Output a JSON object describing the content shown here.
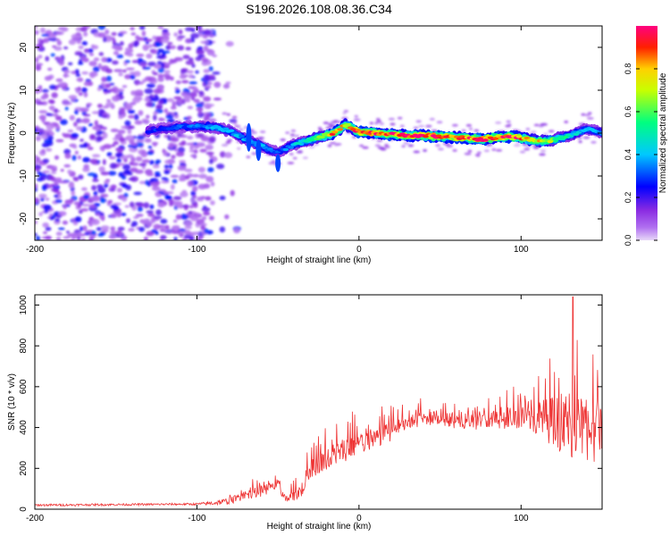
{
  "figure_title": "S196.2026.108.08.36.C34",
  "chart_data": [
    {
      "type": "heatmap",
      "xlabel": "Height of straight line (km)",
      "ylabel": "Frequency (Hz)",
      "xlim": [
        -200,
        150
      ],
      "ylim": [
        -25,
        25
      ],
      "xticks": [
        -200,
        -100,
        0,
        100
      ],
      "yticks": [
        -20,
        -10,
        0,
        10,
        20
      ],
      "colorbar": {
        "label": "Normalized spectral amplitude",
        "range": [
          0,
          1
        ],
        "ticks": [
          "0.0",
          "0.2",
          "0.4",
          "0.6",
          "0.8"
        ],
        "colors": [
          "#e8d8f8",
          "#8a2be2",
          "#0000ff",
          "#00c8ff",
          "#00ff80",
          "#c8ff00",
          "#ffd000",
          "#ff2000",
          "#ff0080"
        ]
      },
      "ridge": {
        "x": [
          -130,
          -110,
          -90,
          -80,
          -70,
          -60,
          -55,
          -50,
          -45,
          -35,
          -25,
          -15,
          -8,
          0,
          10,
          20,
          30,
          45,
          60,
          75,
          85,
          95,
          105,
          115,
          125,
          135,
          140,
          150
        ],
        "freq": [
          0.5,
          1.5,
          1.5,
          0.5,
          -1.5,
          -3,
          -4,
          -4.5,
          -3.5,
          -2,
          -1,
          0,
          2,
          0.3,
          0,
          -0.3,
          -0.5,
          -0.7,
          -1,
          -1.5,
          -1,
          -0.8,
          -1.5,
          -2,
          -1,
          0,
          1,
          0
        ],
        "amplitude": [
          0.25,
          0.3,
          0.4,
          0.35,
          0.4,
          0.4,
          0.35,
          0.3,
          0.35,
          0.45,
          0.6,
          0.85,
          0.7,
          0.95,
          0.9,
          0.9,
          0.9,
          0.95,
          0.85,
          0.95,
          0.9,
          0.9,
          0.8,
          0.7,
          0.55,
          0.4,
          0.4,
          0.35
        ]
      },
      "noise_region_x": [
        -200,
        -90
      ],
      "noise_freq_range": [
        -25,
        25
      ],
      "noise_amplitude": [
        0.05,
        0.3
      ]
    },
    {
      "type": "line",
      "xlabel": "Height of straight line (km)",
      "ylabel": "SNR (10 * v/v)",
      "xlim": [
        -200,
        150
      ],
      "ylim": [
        0,
        1050
      ],
      "xticks": [
        -200,
        -100,
        0,
        100
      ],
      "yticks": [
        0,
        200,
        400,
        600,
        800,
        1000
      ],
      "color": "#ee3333",
      "envelope": {
        "x": [
          -200,
          -100,
          -90,
          -80,
          -70,
          -60,
          -50,
          -45,
          -35,
          -30,
          -20,
          -10,
          0,
          10,
          20,
          30,
          40,
          50,
          60,
          70,
          80,
          90,
          100,
          110,
          120,
          130,
          140,
          150
        ],
        "base": [
          20,
          25,
          30,
          40,
          70,
          90,
          120,
          40,
          100,
          200,
          250,
          290,
          320,
          350,
          380,
          420,
          450,
          440,
          430,
          430,
          440,
          450,
          460,
          450,
          430,
          420,
          400,
          380
        ],
        "spread": [
          15,
          15,
          30,
          50,
          60,
          80,
          80,
          40,
          120,
          150,
          160,
          170,
          180,
          150,
          130,
          110,
          100,
          100,
          110,
          120,
          130,
          160,
          200,
          260,
          350,
          500,
          450,
          450
        ]
      },
      "peak": {
        "x": 132,
        "y": 1040
      }
    }
  ]
}
